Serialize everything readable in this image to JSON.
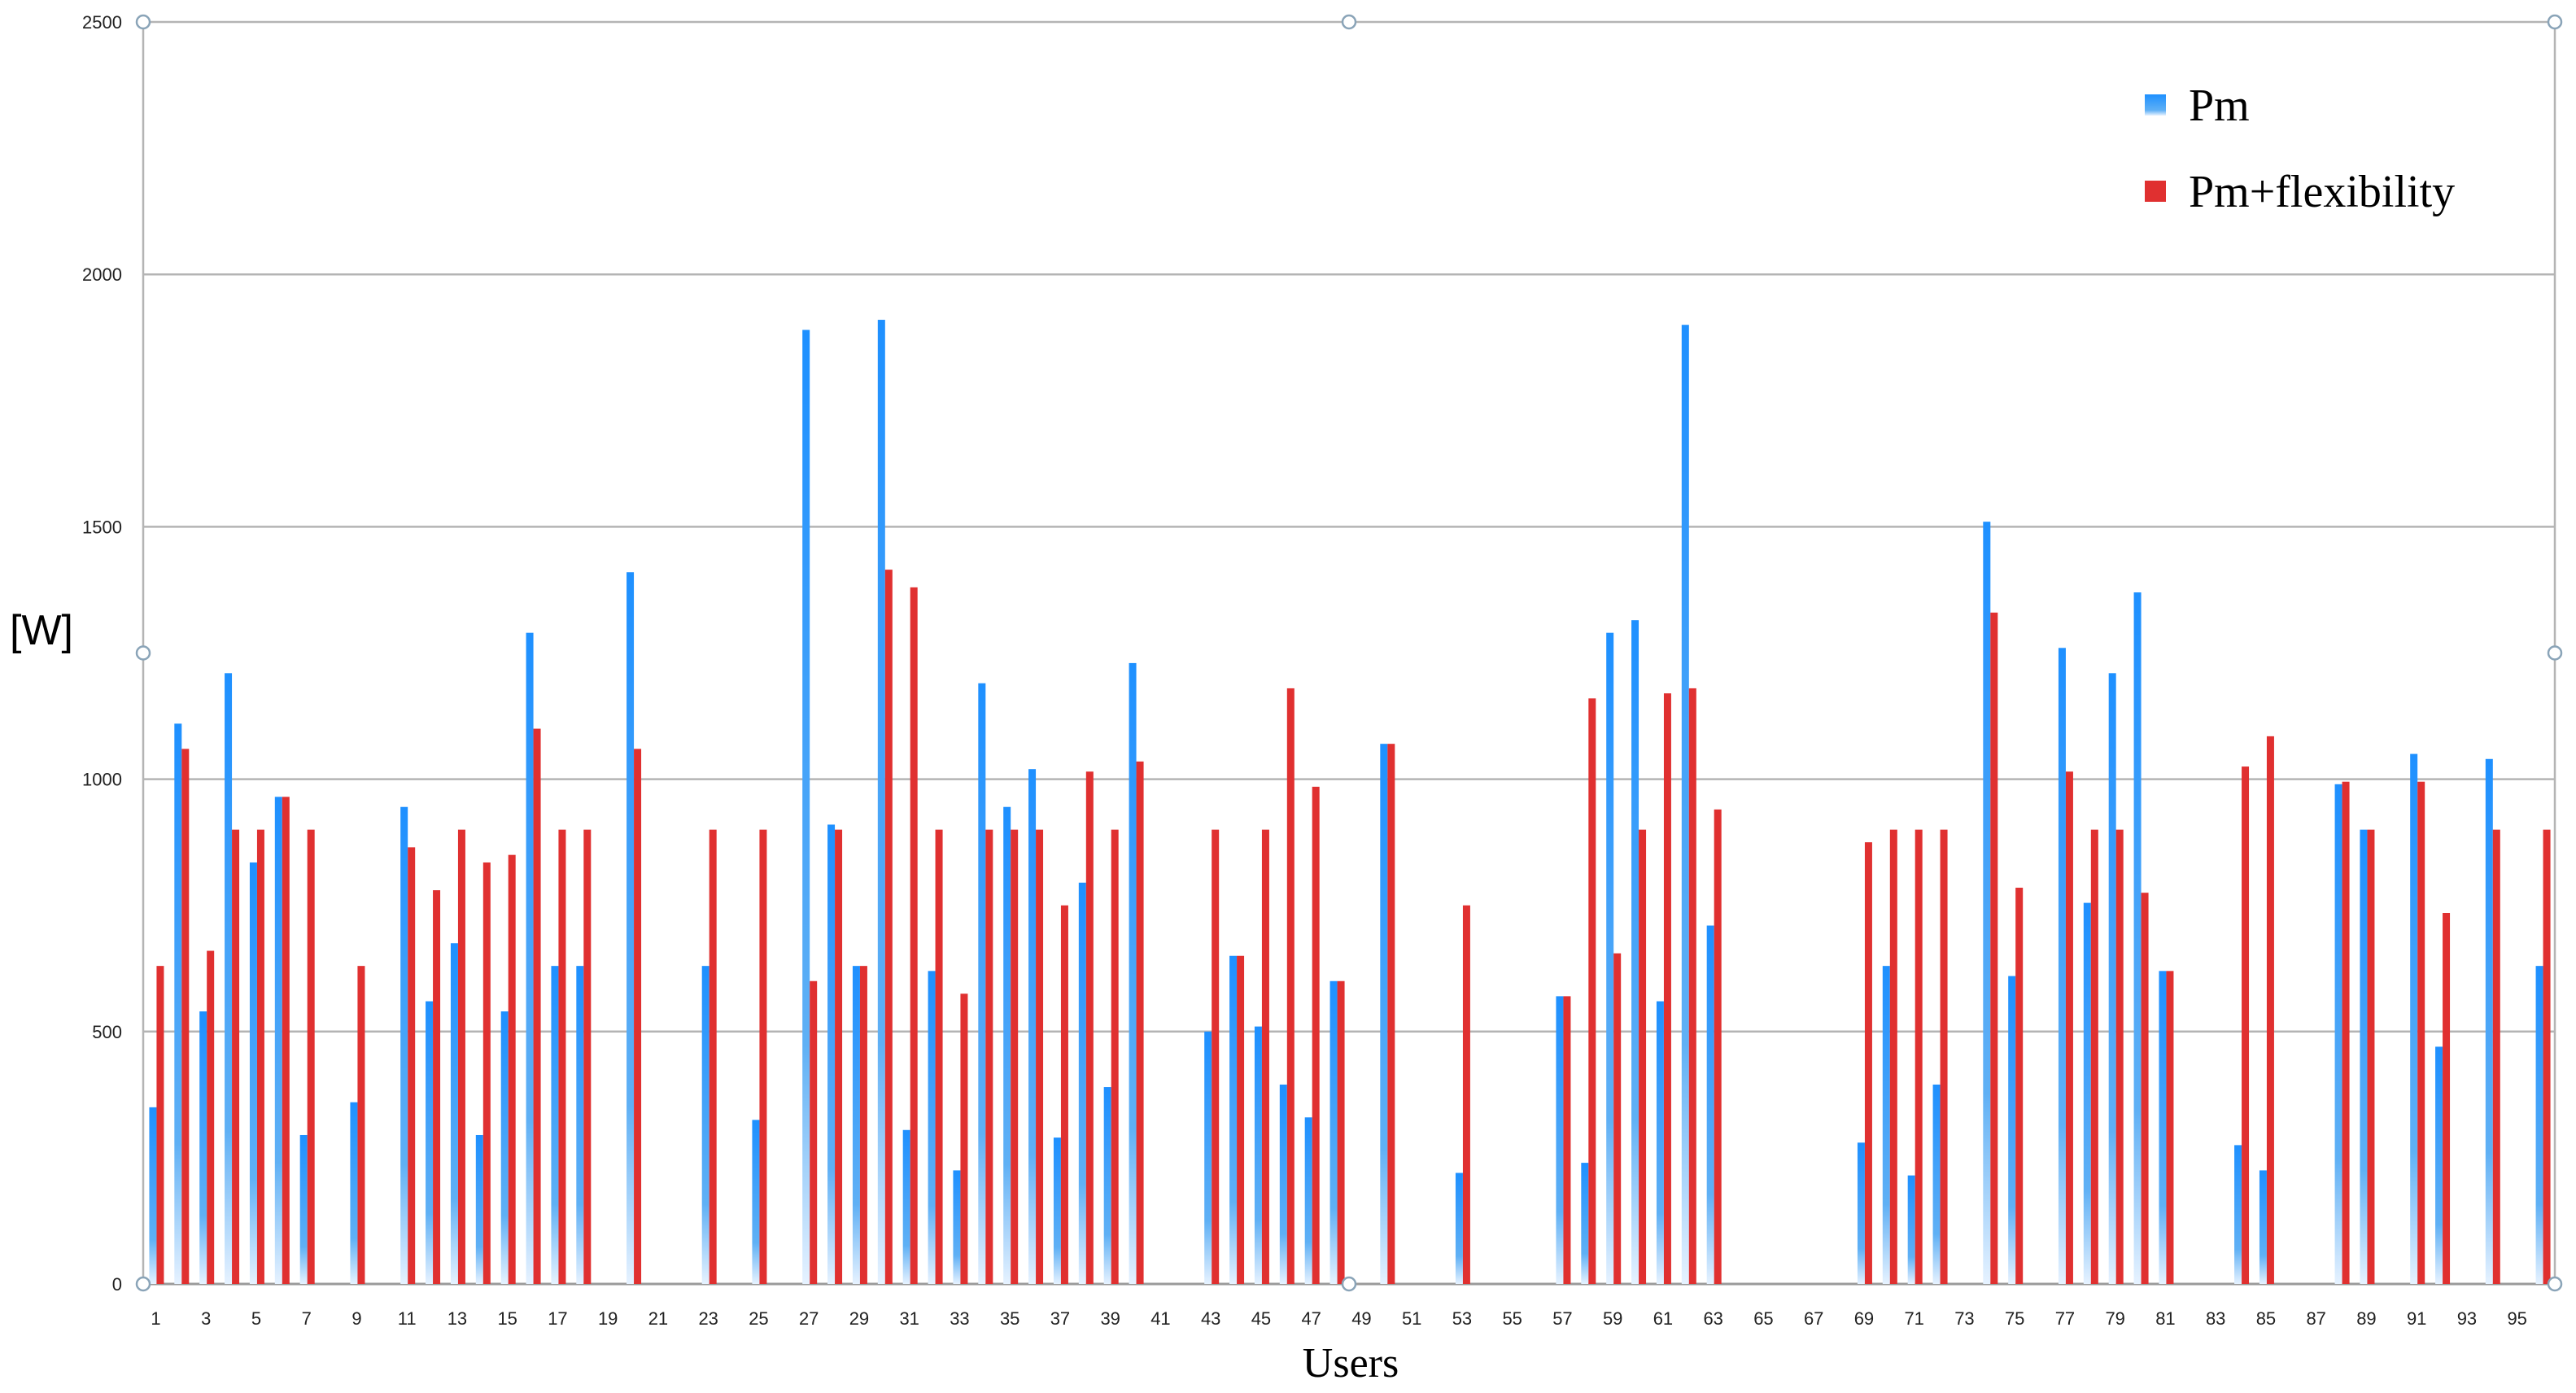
{
  "chart_data": {
    "type": "bar",
    "title": "",
    "xlabel": "Users",
    "ylabel": "[W]",
    "ylim": [
      0,
      2500
    ],
    "yticks": [
      "0",
      "500",
      "1000",
      "1500",
      "2000",
      "2500"
    ],
    "x_tick_labels": [
      "1",
      "3",
      "5",
      "7",
      "9",
      "11",
      "13",
      "15",
      "17",
      "19",
      "21",
      "23",
      "25",
      "27",
      "29",
      "31",
      "33",
      "35",
      "37",
      "39",
      "41",
      "43",
      "45",
      "47",
      "49",
      "51",
      "53",
      "55",
      "57",
      "59",
      "61",
      "63",
      "65",
      "67",
      "69",
      "71",
      "73",
      "75",
      "77",
      "79",
      "81",
      "83",
      "85",
      "87",
      "89",
      "91",
      "93",
      "95"
    ],
    "grid": true,
    "legend": "top-right",
    "categories": [
      1,
      2,
      3,
      4,
      5,
      6,
      7,
      8,
      9,
      10,
      11,
      12,
      13,
      14,
      15,
      16,
      17,
      18,
      19,
      20,
      21,
      22,
      23,
      24,
      25,
      26,
      27,
      28,
      29,
      30,
      31,
      32,
      33,
      34,
      35,
      36,
      37,
      38,
      39,
      40,
      41,
      42,
      43,
      44,
      45,
      46,
      47,
      48,
      49,
      50,
      51,
      52,
      53,
      54,
      55,
      56,
      57,
      58,
      59,
      60,
      61,
      62,
      63,
      64,
      65,
      66,
      67,
      68,
      69,
      70,
      71,
      72,
      73,
      74,
      75,
      76,
      77,
      78,
      79,
      80,
      81,
      82,
      83,
      84,
      85,
      86,
      87,
      88,
      89,
      90,
      91,
      92,
      93,
      94,
      95,
      96
    ],
    "series": [
      {
        "name": "Pm",
        "color": "#1e90ff",
        "values": [
          350,
          1110,
          540,
          1210,
          835,
          965,
          295,
          0,
          360,
          0,
          945,
          560,
          675,
          295,
          540,
          1290,
          630,
          630,
          0,
          1410,
          0,
          0,
          630,
          0,
          325,
          0,
          1890,
          910,
          630,
          1910,
          305,
          620,
          225,
          1190,
          945,
          1020,
          290,
          795,
          390,
          1230,
          0,
          0,
          500,
          650,
          510,
          395,
          330,
          600,
          0,
          1070,
          0,
          0,
          220,
          0,
          0,
          0,
          570,
          240,
          1290,
          1315,
          560,
          1900,
          710,
          0,
          0,
          0,
          0,
          0,
          280,
          630,
          215,
          395,
          0,
          1510,
          610,
          0,
          1260,
          755,
          1210,
          1370,
          620,
          0,
          0,
          275,
          225,
          0,
          0,
          990,
          900,
          0,
          1050,
          470,
          0,
          1040,
          0,
          630
        ]
      },
      {
        "name": "Pm+flexibility",
        "color": "#e03030",
        "values": [
          630,
          1060,
          660,
          900,
          900,
          965,
          900,
          0,
          630,
          0,
          865,
          780,
          900,
          835,
          850,
          1100,
          900,
          900,
          0,
          1060,
          0,
          0,
          900,
          0,
          900,
          0,
          600,
          900,
          630,
          1415,
          1380,
          900,
          575,
          900,
          900,
          900,
          750,
          1015,
          900,
          1035,
          0,
          0,
          900,
          650,
          900,
          1180,
          985,
          600,
          0,
          1070,
          0,
          0,
          750,
          0,
          0,
          0,
          570,
          1160,
          655,
          900,
          1170,
          1180,
          940,
          0,
          0,
          0,
          0,
          0,
          875,
          900,
          900,
          900,
          0,
          1330,
          785,
          0,
          1015,
          900,
          900,
          775,
          620,
          0,
          0,
          1025,
          1085,
          0,
          0,
          995,
          900,
          0,
          995,
          735,
          0,
          900,
          0,
          900
        ]
      }
    ]
  }
}
